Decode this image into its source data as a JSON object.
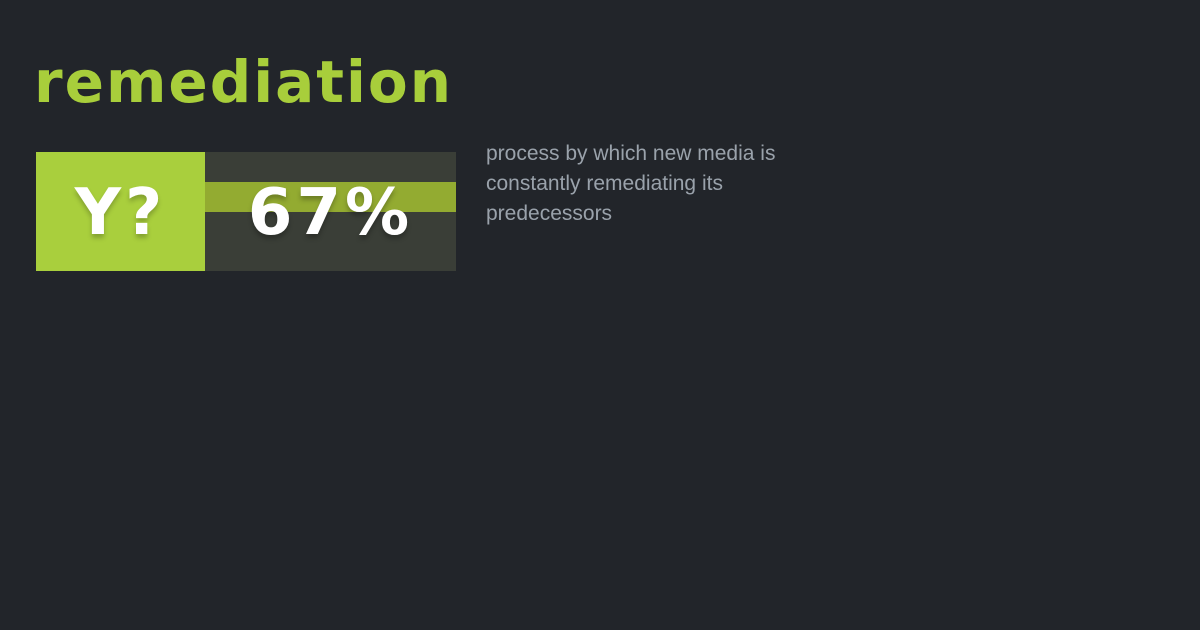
{
  "colors": {
    "background": "#22252a",
    "title_green": "#a8ce3b",
    "badge_square_lime": "#a9cf3d",
    "badge_stripe_olive": "#93ab31",
    "badge_box_dark": "#3a3e37",
    "badge_text_white": "#ffffff",
    "definition_gray": "#9aa2ab"
  },
  "title": "remediation",
  "badge": {
    "label": "Y?",
    "value": "67%"
  },
  "definition": "process by which new media is\nconstantly remediating its\npredecessors"
}
